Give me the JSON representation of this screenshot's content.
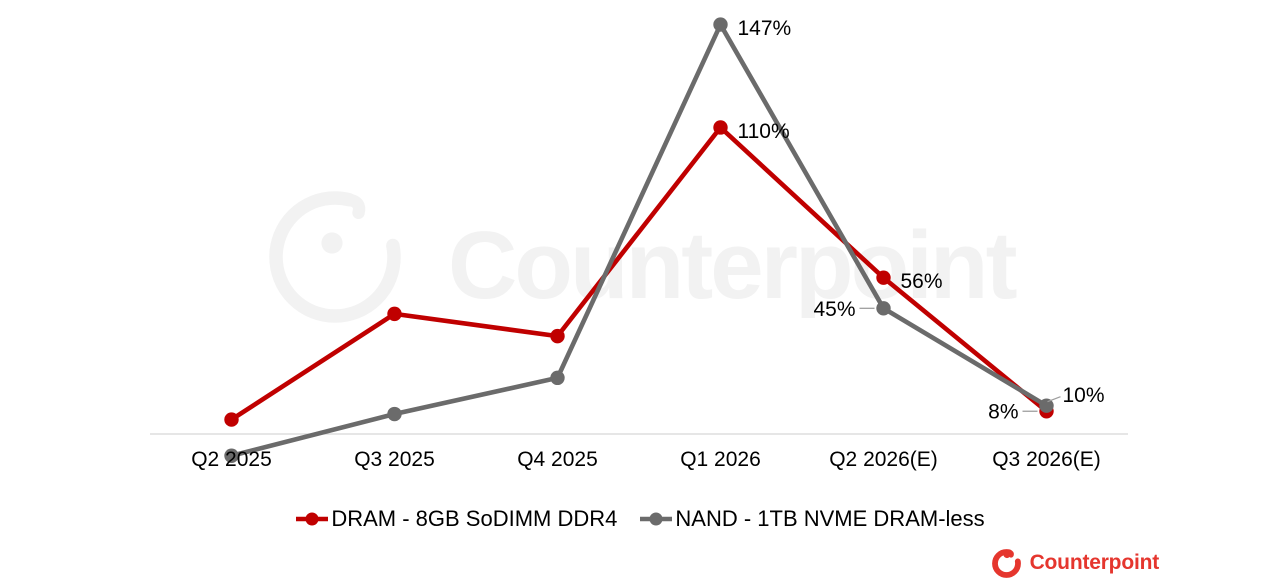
{
  "chart": {
    "watermark": {
      "text": "Counterpoint",
      "color": "#f2f2f2"
    },
    "axis_color": "#d6d6d6",
    "leader_color": "#9e9e9e",
    "label_color": "#000000"
  },
  "chart_data": {
    "type": "line",
    "categories": [
      "Q2 2025",
      "Q3 2025",
      "Q4 2025",
      "Q1 2026",
      "Q2 2026(E)",
      "Q3 2026(E)"
    ],
    "series": [
      {
        "name": "DRAM - 8GB SoDIMM DDR4",
        "color": "#c00000",
        "values": [
          5,
          43,
          35,
          110,
          56,
          8
        ]
      },
      {
        "name": "NAND - 1TB NVME DRAM-less",
        "color": "#6b6b6b",
        "values": [
          -8,
          7,
          20,
          147,
          45,
          10
        ]
      }
    ],
    "data_labels": [
      {
        "series": 1,
        "index": 3,
        "text": "147%",
        "placement": "right"
      },
      {
        "series": 0,
        "index": 3,
        "text": "110%",
        "placement": "right"
      },
      {
        "series": 0,
        "index": 4,
        "text": "56%",
        "placement": "right"
      },
      {
        "series": 1,
        "index": 4,
        "text": "45%",
        "placement": "left-leader"
      },
      {
        "series": 1,
        "index": 5,
        "text": "10%",
        "placement": "upper-right-leader"
      },
      {
        "series": 0,
        "index": 5,
        "text": "8%",
        "placement": "left-leader"
      }
    ],
    "baseline_value": 0,
    "ylim": [
      -20,
      160
    ],
    "grid": false,
    "legend_position": "bottom"
  },
  "legend": {
    "items": [
      {
        "label": "DRAM - 8GB SoDIMM DDR4",
        "color": "#c00000"
      },
      {
        "label": "NAND - 1TB NVME DRAM-less",
        "color": "#6b6b6b"
      }
    ]
  },
  "branding": {
    "logo_text": "Counterpoint",
    "color": "#e5362e"
  }
}
